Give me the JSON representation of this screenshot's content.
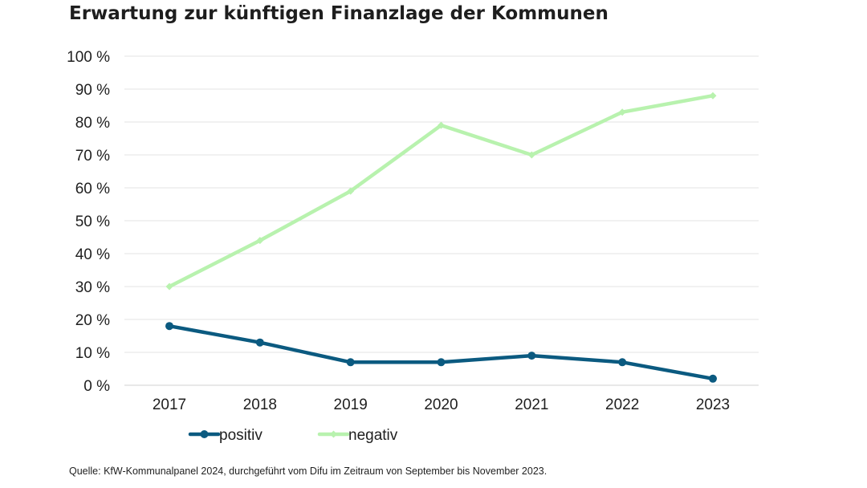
{
  "page": {
    "source": "Quelle: KfW-Kommunalpanel 2024, durchgeführt vom Difu im Zeitraum von September bis November 2023."
  },
  "chart_data": {
    "type": "line",
    "title": "Erwartung zur künftigen Finanzlage der Kommunen",
    "xlabel": "",
    "ylabel": "",
    "categories": [
      "2017",
      "2018",
      "2019",
      "2020",
      "2021",
      "2022",
      "2023"
    ],
    "ylim": [
      0,
      100
    ],
    "y_ticks": [
      0,
      10,
      20,
      30,
      40,
      50,
      60,
      70,
      80,
      90,
      100
    ],
    "y_tick_labels": [
      "0 %",
      "10 %",
      "20 %",
      "30 %",
      "40 %",
      "50 %",
      "60 %",
      "70 %",
      "80 %",
      "90 %",
      "100 %"
    ],
    "grid": true,
    "legend_position": "bottom-left",
    "series": [
      {
        "name": "positiv",
        "color": "#0b5a80",
        "marker": "circle",
        "values": [
          18,
          13,
          7,
          7,
          9,
          7,
          2
        ]
      },
      {
        "name": "negativ",
        "color": "#b8f2ae",
        "marker": "diamond",
        "values": [
          30,
          44,
          59,
          79,
          70,
          83,
          88
        ]
      }
    ]
  }
}
